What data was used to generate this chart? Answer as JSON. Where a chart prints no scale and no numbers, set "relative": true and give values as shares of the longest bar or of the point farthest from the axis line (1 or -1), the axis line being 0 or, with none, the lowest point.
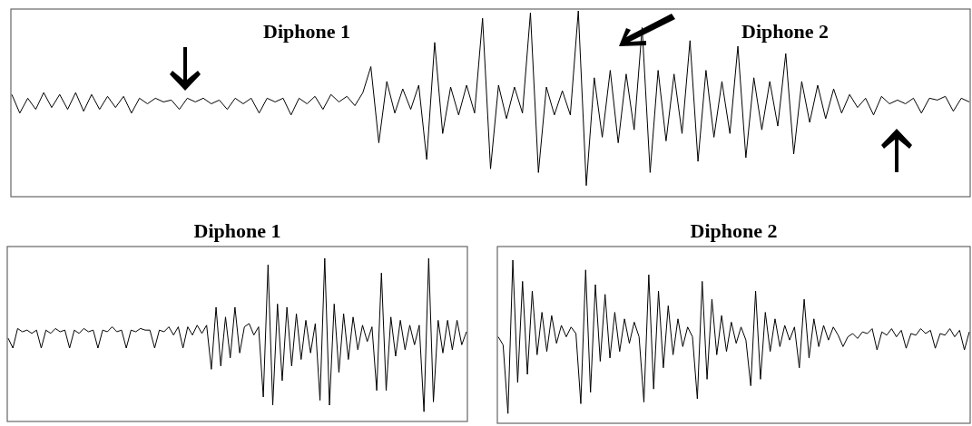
{
  "chart_data": [
    {
      "type": "line",
      "relative": true,
      "annotations": [
        "Diphone 1",
        "Diphone 2"
      ],
      "categories": [
        null,
        null,
        null,
        null,
        null,
        null,
        null,
        null,
        null,
        null,
        null,
        null,
        null,
        null,
        null,
        null,
        null,
        null,
        null,
        null,
        null,
        null,
        null,
        null,
        null,
        null,
        null,
        null,
        null,
        null,
        null,
        null,
        null,
        null,
        null,
        null,
        null,
        null,
        null,
        null,
        null,
        null,
        null,
        null,
        null,
        null,
        null,
        null,
        null,
        null,
        null,
        null,
        null,
        null,
        null,
        null,
        null,
        null,
        null,
        null,
        null,
        null,
        null,
        null,
        null,
        null,
        null,
        null,
        null,
        null,
        null,
        null,
        null,
        null,
        null,
        null,
        null,
        null,
        null,
        null,
        null,
        null,
        null,
        null,
        null,
        null,
        null,
        null,
        null,
        null,
        null,
        null,
        null,
        null,
        null,
        null,
        null,
        null,
        null,
        null,
        null,
        null,
        null,
        null,
        null,
        null,
        null,
        null,
        null,
        null,
        null,
        null,
        null,
        null,
        null,
        null,
        null,
        null,
        null,
        null,
        null
      ],
      "series": [
        {
          "color": "#000000",
          "values": [
            0.55,
            0.45,
            0.53,
            0.47,
            0.56,
            0.48,
            0.55,
            0.47,
            0.56,
            0.46,
            0.55,
            0.47,
            0.54,
            0.48,
            0.54,
            0.45,
            0.53,
            0.5,
            0.53,
            0.51,
            0.52,
            0.47,
            0.53,
            0.51,
            0.53,
            0.5,
            0.52,
            0.47,
            0.53,
            0.5,
            0.53,
            0.45,
            0.53,
            0.51,
            0.53,
            0.44,
            0.53,
            0.5,
            0.54,
            0.47,
            0.55,
            0.51,
            0.54,
            0.49,
            0.56,
            0.7,
            0.29,
            0.62,
            0.45,
            0.58,
            0.47,
            0.6,
            0.2,
            0.83,
            0.34,
            0.59,
            0.44,
            0.6,
            0.45,
            0.96,
            0.15,
            0.6,
            0.42,
            0.59,
            0.45,
            0.99,
            0.13,
            0.59,
            0.44,
            0.57,
            0.44,
            1.0,
            0.06,
            0.64,
            0.32,
            0.68,
            0.29,
            0.66,
            0.36,
            0.91,
            0.13,
            0.68,
            0.3,
            0.66,
            0.34,
            0.84,
            0.19,
            0.68,
            0.32,
            0.62,
            0.34,
            0.81,
            0.21,
            0.64,
            0.36,
            0.62,
            0.38,
            0.77,
            0.23,
            0.62,
            0.4,
            0.6,
            0.42,
            0.58,
            0.45,
            0.55,
            0.48,
            0.53,
            0.44,
            0.54,
            0.5,
            0.52,
            0.5,
            0.53,
            0.45,
            0.53,
            0.52,
            0.54,
            0.46,
            0.53,
            0.51
          ]
        }
      ]
    },
    {
      "type": "line",
      "relative": true,
      "title": "Diphone 1",
      "categories": [
        null,
        null,
        null,
        null,
        null,
        null,
        null,
        null,
        null,
        null,
        null,
        null,
        null,
        null,
        null,
        null,
        null,
        null,
        null,
        null,
        null,
        null,
        null,
        null,
        null,
        null,
        null,
        null,
        null,
        null,
        null,
        null,
        null,
        null,
        null,
        null,
        null,
        null,
        null,
        null,
        null,
        null,
        null,
        null,
        null,
        null,
        null,
        null,
        null,
        null,
        null,
        null,
        null,
        null,
        null,
        null,
        null,
        null,
        null,
        null,
        null,
        null,
        null,
        null,
        null,
        null,
        null,
        null,
        null,
        null,
        null,
        null,
        null,
        null,
        null,
        null,
        null,
        null,
        null,
        null,
        null,
        null,
        null,
        null,
        null,
        null,
        null,
        null,
        null,
        null,
        null,
        null,
        null,
        null,
        null,
        null,
        null,
        null
      ],
      "series": [
        {
          "color": "#000000",
          "values": [
            0.51,
            0.45,
            0.57,
            0.55,
            0.56,
            0.54,
            0.56,
            0.45,
            0.56,
            0.54,
            0.57,
            0.55,
            0.56,
            0.45,
            0.56,
            0.54,
            0.57,
            0.55,
            0.56,
            0.45,
            0.56,
            0.55,
            0.58,
            0.55,
            0.56,
            0.45,
            0.56,
            0.55,
            0.57,
            0.56,
            0.56,
            0.45,
            0.56,
            0.55,
            0.58,
            0.53,
            0.58,
            0.45,
            0.58,
            0.53,
            0.59,
            0.54,
            0.59,
            0.32,
            0.7,
            0.34,
            0.64,
            0.39,
            0.7,
            0.42,
            0.58,
            0.6,
            0.53,
            0.58,
            0.15,
            0.96,
            0.1,
            0.72,
            0.25,
            0.7,
            0.34,
            0.66,
            0.38,
            0.62,
            0.42,
            0.6,
            0.13,
            1.0,
            0.1,
            0.72,
            0.3,
            0.66,
            0.38,
            0.64,
            0.44,
            0.59,
            0.49,
            0.58,
            0.19,
            0.91,
            0.19,
            0.64,
            0.4,
            0.62,
            0.44,
            0.59,
            0.47,
            0.59,
            0.06,
            1.0,
            0.12,
            0.62,
            0.42,
            0.62,
            0.44,
            0.62,
            0.47,
            0.55
          ]
        }
      ]
    },
    {
      "type": "line",
      "relative": true,
      "title": "Diphone 2",
      "categories": [
        null,
        null,
        null,
        null,
        null,
        null,
        null,
        null,
        null,
        null,
        null,
        null,
        null,
        null,
        null,
        null,
        null,
        null,
        null,
        null,
        null,
        null,
        null,
        null,
        null,
        null,
        null,
        null,
        null,
        null,
        null,
        null,
        null,
        null,
        null,
        null,
        null,
        null,
        null,
        null,
        null,
        null,
        null,
        null,
        null,
        null,
        null,
        null,
        null,
        null,
        null,
        null,
        null,
        null,
        null,
        null,
        null,
        null,
        null,
        null,
        null,
        null,
        null,
        null,
        null,
        null,
        null,
        null,
        null,
        null,
        null,
        null,
        null,
        null,
        null,
        null,
        null,
        null,
        null,
        null,
        null,
        null,
        null,
        null,
        null,
        null,
        null,
        null,
        null,
        null,
        null,
        null,
        null,
        null,
        null,
        null,
        null,
        null
      ],
      "series": [
        {
          "color": "#000000",
          "values": [
            0.53,
            0.48,
            0.06,
            1.0,
            0.25,
            0.87,
            0.3,
            0.81,
            0.42,
            0.68,
            0.44,
            0.66,
            0.49,
            0.6,
            0.53,
            0.59,
            0.55,
            0.12,
            0.94,
            0.19,
            0.85,
            0.38,
            0.79,
            0.4,
            0.68,
            0.44,
            0.64,
            0.49,
            0.62,
            0.53,
            0.13,
            0.91,
            0.21,
            0.81,
            0.34,
            0.72,
            0.42,
            0.64,
            0.47,
            0.59,
            0.53,
            0.15,
            0.87,
            0.27,
            0.76,
            0.42,
            0.66,
            0.44,
            0.62,
            0.49,
            0.59,
            0.51,
            0.23,
            0.81,
            0.27,
            0.68,
            0.44,
            0.64,
            0.47,
            0.6,
            0.51,
            0.59,
            0.34,
            0.76,
            0.4,
            0.64,
            0.47,
            0.6,
            0.51,
            0.59,
            0.54,
            0.47,
            0.53,
            0.55,
            0.52,
            0.56,
            0.55,
            0.58,
            0.45,
            0.56,
            0.54,
            0.58,
            0.53,
            0.57,
            0.46,
            0.55,
            0.54,
            0.58,
            0.55,
            0.57,
            0.46,
            0.55,
            0.54,
            0.58,
            0.53,
            0.57,
            0.45,
            0.56
          ]
        }
      ]
    }
  ]
}
